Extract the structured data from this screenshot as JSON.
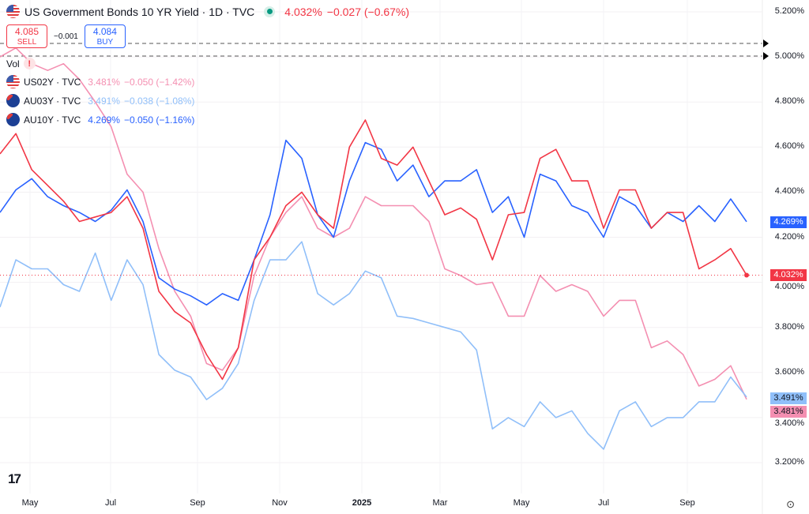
{
  "header": {
    "title": "US Government Bonds 10 YR Yield · 1D · TVC",
    "price": "4.032%",
    "change": "−0.027 (−0.67%)"
  },
  "trade": {
    "sell_price": "4.085",
    "sell_label": "SELL",
    "spread": "−0.001",
    "buy_price": "4.084",
    "buy_label": "BUY"
  },
  "vol_label": "Vol",
  "vol_warning": "!",
  "legend": [
    {
      "symbol": "US02Y · TVC",
      "value": "3.481%",
      "change": "−0.050 (−1.42%)",
      "color": "#f48fb1",
      "flag": "us"
    },
    {
      "symbol": "AU03Y · TVC",
      "value": "3.491%",
      "change": "−0.038 (−1.08%)",
      "color": "#90bff9",
      "flag": "au"
    },
    {
      "symbol": "AU10Y · TVC",
      "value": "4.269%",
      "change": "−0.050 (−1.16%)",
      "color": "#2962ff",
      "flag": "au"
    }
  ],
  "y_ticks": [
    "5.200%",
    "5.000%",
    "4.800%",
    "4.600%",
    "4.400%",
    "4.200%",
    "4.000%",
    "3.800%",
    "3.600%",
    "3.400%",
    "3.200%"
  ],
  "x_ticks": [
    "May",
    "Jul",
    "Sep",
    "Nov",
    "2025",
    "Mar",
    "May",
    "Jul",
    "Sep"
  ],
  "price_tags": [
    {
      "label": "4.269%",
      "value": 4.269,
      "color": "#2962ff"
    },
    {
      "label": "4.032%",
      "value": 4.032,
      "color": "#f23645"
    },
    {
      "label": "3.491%",
      "value": 3.491,
      "color": "#90bff9"
    },
    {
      "label": "3.481%",
      "value": 3.481,
      "color": "#f48fb1"
    }
  ],
  "chart_data": {
    "type": "line",
    "x_range": [
      "2024-04-08",
      "2025-10-10"
    ],
    "ylim": [
      3.1,
      5.25
    ],
    "y_ticks": [
      5.2,
      5.0,
      4.8,
      4.6,
      4.4,
      4.2,
      4.0,
      3.8,
      3.6,
      3.4,
      3.2
    ],
    "x_ticks": [
      "May",
      "Jul",
      "Sep",
      "Nov",
      "2025",
      "Mar",
      "May",
      "Jul",
      "Sep"
    ],
    "dashed_levels": [
      5.05,
      5.0
    ],
    "series": [
      {
        "name": "US02Y",
        "color": "#f48fb1",
        "values": [
          5.0,
          5.04,
          4.97,
          4.94,
          4.97,
          4.9,
          4.8,
          4.69,
          4.48,
          4.4,
          4.15,
          3.96,
          3.85,
          3.64,
          3.61,
          3.71,
          4.03,
          4.2,
          4.31,
          4.38,
          4.24,
          4.2,
          4.24,
          4.38,
          4.34,
          4.34,
          4.34,
          4.27,
          4.06,
          4.03,
          3.99,
          4.0,
          3.85,
          3.85,
          4.03,
          3.96,
          3.99,
          3.96,
          3.85,
          3.92,
          3.92,
          3.71,
          3.74,
          3.68,
          3.54,
          3.57,
          3.63,
          3.481
        ]
      },
      {
        "name": "AU03Y",
        "color": "#90bff9",
        "values": [
          3.89,
          4.1,
          4.06,
          4.06,
          3.99,
          3.96,
          4.13,
          3.92,
          4.1,
          3.99,
          3.68,
          3.61,
          3.58,
          3.48,
          3.53,
          3.64,
          3.92,
          4.1,
          4.1,
          4.18,
          3.95,
          3.9,
          3.95,
          4.05,
          4.02,
          3.85,
          3.84,
          3.82,
          3.8,
          3.78,
          3.7,
          3.35,
          3.4,
          3.36,
          3.47,
          3.4,
          3.43,
          3.33,
          3.26,
          3.43,
          3.47,
          3.36,
          3.4,
          3.4,
          3.47,
          3.47,
          3.58,
          3.491
        ]
      },
      {
        "name": "AU10Y",
        "color": "#2962ff",
        "values": [
          4.31,
          4.41,
          4.46,
          4.38,
          4.34,
          4.31,
          4.27,
          4.32,
          4.41,
          4.27,
          4.02,
          3.97,
          3.94,
          3.9,
          3.95,
          3.92,
          4.1,
          4.3,
          4.63,
          4.55,
          4.3,
          4.2,
          4.45,
          4.62,
          4.59,
          4.45,
          4.52,
          4.38,
          4.45,
          4.45,
          4.5,
          4.31,
          4.38,
          4.2,
          4.48,
          4.45,
          4.34,
          4.31,
          4.2,
          4.38,
          4.34,
          4.24,
          4.31,
          4.27,
          4.34,
          4.27,
          4.37,
          4.269
        ]
      },
      {
        "name": "US10Y",
        "color": "#f23645",
        "values": [
          4.57,
          4.66,
          4.5,
          4.43,
          4.36,
          4.27,
          4.29,
          4.31,
          4.38,
          4.24,
          3.96,
          3.87,
          3.82,
          3.68,
          3.57,
          3.71,
          4.1,
          4.2,
          4.34,
          4.4,
          4.3,
          4.24,
          4.6,
          4.72,
          4.55,
          4.52,
          4.6,
          4.45,
          4.3,
          4.33,
          4.28,
          4.1,
          4.3,
          4.31,
          4.55,
          4.59,
          4.45,
          4.45,
          4.24,
          4.41,
          4.41,
          4.24,
          4.31,
          4.31,
          4.06,
          4.1,
          4.15,
          4.032
        ]
      }
    ]
  }
}
